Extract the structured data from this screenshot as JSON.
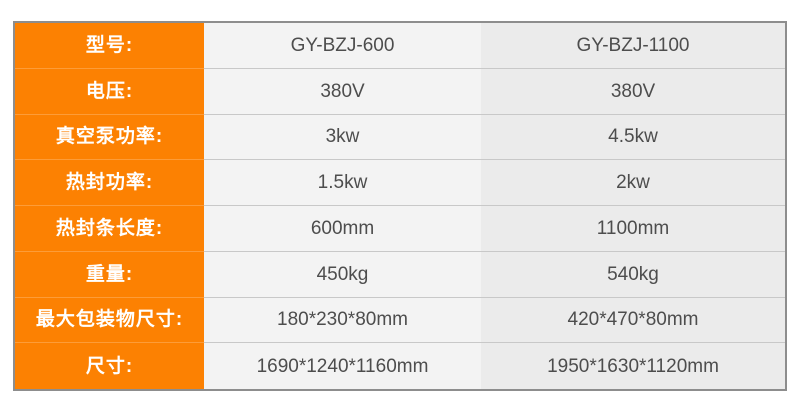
{
  "table": {
    "title": "vacuum-packaging-machine-specifications",
    "colors": {
      "label_column_bg": "#fc8102",
      "label_divider": "#fd9c38",
      "label_text": "#ffffff",
      "value_col1_bg": "#f3f3f3",
      "value_col2_bg": "#ebebeb",
      "value_divider": "#c8c8c8",
      "value_text": "#4d4d4d",
      "outer_border": "#8d8d8d",
      "page_bg": "#ffffff"
    },
    "rows": [
      {
        "label": "型号:",
        "value1": "GY-BZJ-600",
        "value2": "GY-BZJ-1100"
      },
      {
        "label": "电压:",
        "value1": "380V",
        "value2": "380V"
      },
      {
        "label": "真空泵功率:",
        "value1": "3kw",
        "value2": "4.5kw"
      },
      {
        "label": "热封功率:",
        "value1": "1.5kw",
        "value2": "2kw"
      },
      {
        "label": "热封条长度:",
        "value1": "600mm",
        "value2": "1100mm"
      },
      {
        "label": "重量:",
        "value1": "450kg",
        "value2": "540kg"
      },
      {
        "label": "最大包装物尺寸:",
        "value1": "180*230*80mm",
        "value2": "420*470*80mm"
      },
      {
        "label": "尺寸:",
        "value1": "1690*1240*1160mm",
        "value2": "1950*1630*1120mm"
      }
    ]
  }
}
